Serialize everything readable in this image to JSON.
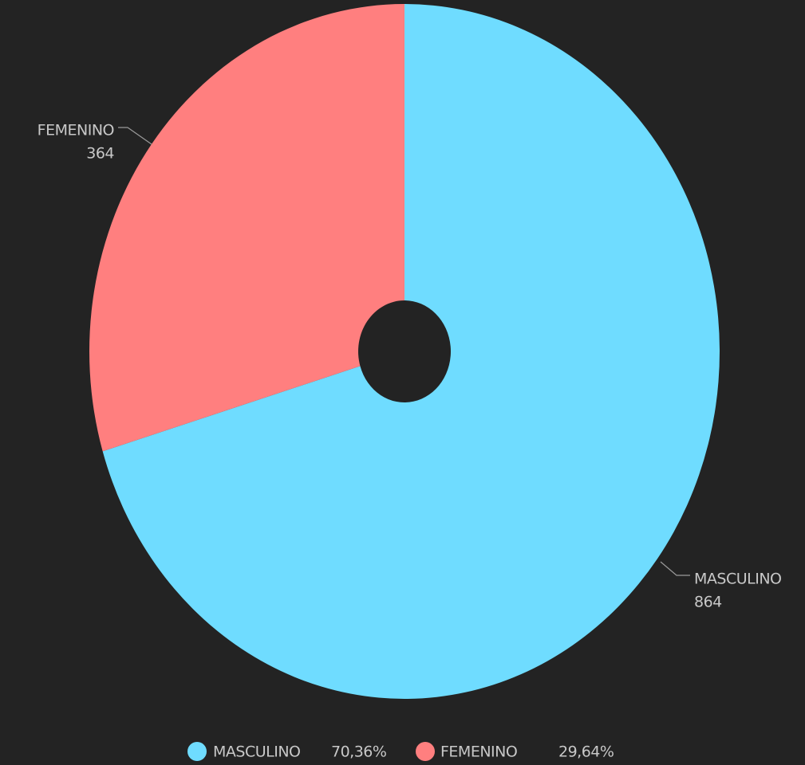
{
  "chart_data": {
    "type": "donut",
    "categories": [
      "MASCULINO",
      "FEMENINO"
    ],
    "values": [
      864,
      364
    ],
    "colors": [
      "#6fdcff",
      "#ff7f7f"
    ],
    "percentages": [
      70.36,
      29.64
    ],
    "percentage_labels": [
      "70,36%",
      "29,64%"
    ]
  }
}
